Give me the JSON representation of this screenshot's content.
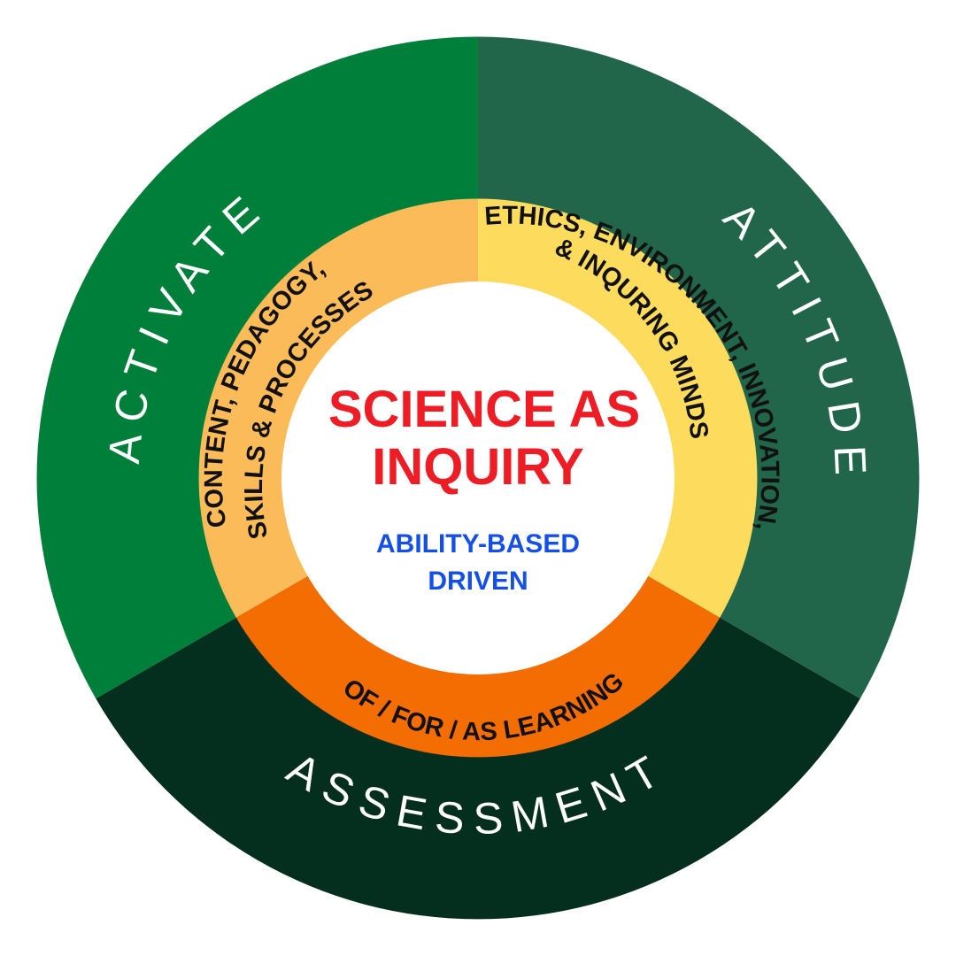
{
  "outer_ring": {
    "activate": {
      "label": "ACTIVATE",
      "color": "#007f3a"
    },
    "attitude": {
      "label": "ATTITUDE",
      "color": "#21654a"
    },
    "assessment": {
      "label": "ASSESSMENT",
      "color": "#042e1d"
    }
  },
  "inner_ring": {
    "content": {
      "line1": "CONTENT, PEDAGOGY,",
      "line2": "SKILLS & PROCESSES",
      "color": "#fbbb58"
    },
    "ethics": {
      "line1": "ETHICS, ENVIRONMENT, INNOVATION,",
      "line2": "& INQURING MINDS",
      "color": "#fddb5c"
    },
    "learning": {
      "label": "OF / FOR / AS LEARNING",
      "color": "#f46d02"
    }
  },
  "center": {
    "title_line1": "SCIENCE AS",
    "title_line2": "INQUIRY",
    "subtitle_line1": "ABILITY-BASED",
    "subtitle_line2": "DRIVEN",
    "title_color": "#ee1c25",
    "subtitle_color": "#1450e8"
  }
}
